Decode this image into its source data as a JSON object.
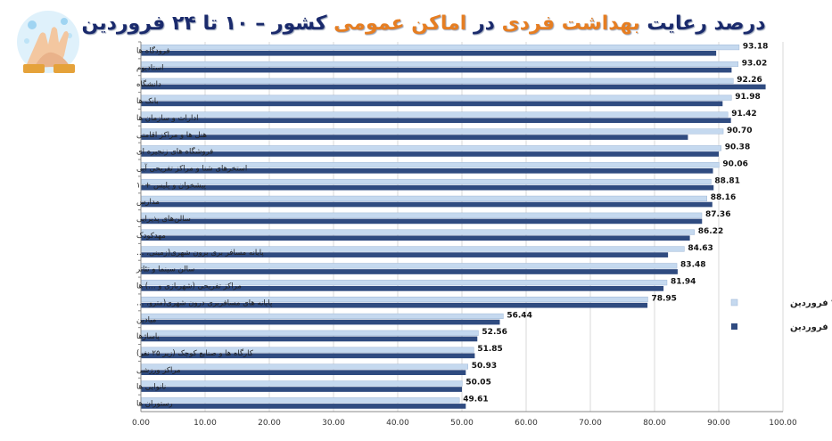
{
  "chart_data": {
    "type": "bar",
    "orientation": "horizontal",
    "title": {
      "part1": "درصد رعایت ",
      "part2": "بهداشت فردی",
      "part3": " در ",
      "part4": "اماکن عمومی",
      "part5": " کشور – ۱۰ تا ۲۴ فروردین"
    },
    "categories": [
      "فرودگاه ها",
      "استادیوم",
      "دانشگاه",
      "بانک ها",
      "ادارات و سازمان ها",
      "هتل ها و مراکز اقامتی",
      "فروشگاه های زنجیره ای",
      "استخرهای شنا و مراکز تفریحی آبی",
      "پیشخوان و پلیس +۱۰",
      "مدارس",
      "سالن‌های پذیرایی",
      "مهدکودک",
      "پایانه مسافر بری برون شهری(زمینی، …",
      "سالن سینما و تئاتر",
      "مراکز تفریحی (شهربازی و …) ها",
      "پایانه های مسافربری درون شهری(مترو، …",
      "میادین",
      "پاسا‌ژها",
      "کارگاه ها و صنایع کوچک (زیر ۲۵ نفر)",
      "مراکز ورزشی",
      "نانوایی ها",
      "رستوران ها"
    ],
    "series": [
      {
        "name": "تا ۲۴ فروردین",
        "color": "#c5d9ef",
        "values": [
          93.18,
          93.02,
          92.26,
          91.98,
          91.42,
          90.7,
          90.38,
          90.06,
          88.81,
          88.16,
          87.36,
          86.22,
          84.63,
          83.48,
          81.94,
          78.95,
          56.44,
          52.56,
          51.85,
          50.93,
          50.05,
          49.61
        ]
      },
      {
        "name": "تا ۱۷ فروردین",
        "color": "#2f4b80",
        "values": [
          89.6,
          92.0,
          97.3,
          90.6,
          91.9,
          85.2,
          90.0,
          89.1,
          89.2,
          89.0,
          87.4,
          85.5,
          82.1,
          83.6,
          81.4,
          78.9,
          55.9,
          52.4,
          52.0,
          50.6,
          50.0,
          50.6
        ]
      }
    ],
    "data_labels": [
      "93.18",
      "93.02",
      "92.26",
      "91.98",
      "91.42",
      "90.70",
      "90.38",
      "90.06",
      "88.81",
      "88.16",
      "87.36",
      "86.22",
      "84.63",
      "83.48",
      "81.94",
      "78.95",
      "56.44",
      "52.56",
      "51.85",
      "50.93",
      "50.05",
      "49.61"
    ],
    "xticks": [
      "0.00",
      "10.00",
      "20.00",
      "30.00",
      "40.00",
      "50.00",
      "60.00",
      "70.00",
      "80.00",
      "90.00",
      "100.00"
    ],
    "xlim": [
      0,
      100
    ],
    "grid": true,
    "legend_position": "right"
  }
}
